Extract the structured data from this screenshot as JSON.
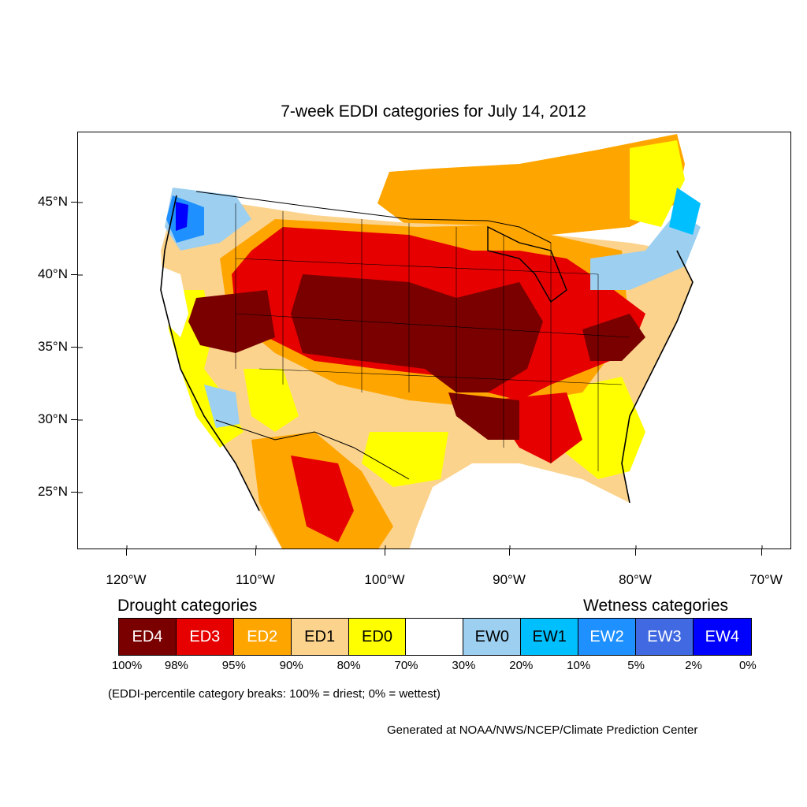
{
  "map": {
    "title": "7-week EDDI categories for July 14, 2012",
    "lat_labels": [
      "45°N",
      "40°N",
      "35°N",
      "30°N",
      "25°N"
    ],
    "lon_labels": [
      "120°W",
      "110°W",
      "100°W",
      "90°W",
      "80°W",
      "70°W"
    ]
  },
  "legend": {
    "drought_heading": "Drought categories",
    "wetness_heading": "Wetness categories",
    "categories": [
      {
        "label": "ED4",
        "color": "#7a0000",
        "text_color": "#ffffff"
      },
      {
        "label": "ED3",
        "color": "#e60000",
        "text_color": "#ffffff"
      },
      {
        "label": "ED2",
        "color": "#ffa500",
        "text_color": "#ffffff"
      },
      {
        "label": "ED1",
        "color": "#fcd38d",
        "text_color": "#000000"
      },
      {
        "label": "ED0",
        "color": "#ffff00",
        "text_color": "#000000"
      },
      {
        "label": "",
        "color": "#ffffff",
        "text_color": "#000000"
      },
      {
        "label": "EW0",
        "color": "#9ccff0",
        "text_color": "#000000"
      },
      {
        "label": "EW1",
        "color": "#00bfff",
        "text_color": "#000000"
      },
      {
        "label": "EW2",
        "color": "#1e90ff",
        "text_color": "#ffffff"
      },
      {
        "label": "EW3",
        "color": "#4169e1",
        "text_color": "#ffffff"
      },
      {
        "label": "EW4",
        "color": "#0000ff",
        "text_color": "#ffffff"
      }
    ],
    "percentiles": [
      "100%",
      "98%",
      "95%",
      "90%",
      "80%",
      "70%",
      "30%",
      "20%",
      "10%",
      "5%",
      "2%",
      "0%"
    ],
    "note": "(EDDI-percentile category breaks: 100% = driest; 0% = wettest)",
    "credit": "Generated at NOAA/NWS/NCEP/Climate Prediction Center"
  }
}
